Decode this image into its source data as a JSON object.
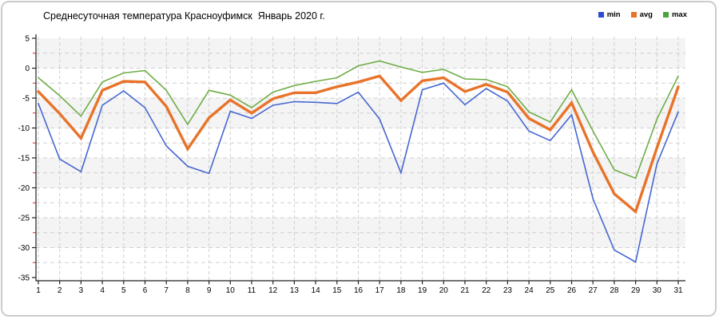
{
  "chart": {
    "title": "Среднесуточная температура Красноуфимск  Январь 2020 г.",
    "legend": [
      {
        "label": "min",
        "color": "#2d4bd5"
      },
      {
        "label": "avg",
        "color": "#e8732a"
      },
      {
        "label": "max",
        "color": "#4ca33f"
      }
    ]
  },
  "chart_data": {
    "type": "line",
    "title": "Среднесуточная температура Красноуфимск  Январь 2020 г.",
    "xlabel": "",
    "ylabel": "",
    "x": [
      1,
      2,
      3,
      4,
      5,
      6,
      7,
      8,
      9,
      10,
      11,
      12,
      13,
      14,
      15,
      16,
      17,
      18,
      19,
      20,
      21,
      22,
      23,
      24,
      25,
      26,
      27,
      28,
      29,
      30,
      31
    ],
    "series": [
      {
        "name": "min",
        "color": "#4667d2",
        "width": 1.6,
        "values": [
          -5.9,
          -15.2,
          -17.3,
          -6.2,
          -3.8,
          -6.6,
          -13.0,
          -16.4,
          -17.6,
          -7.2,
          -8.4,
          -6.2,
          -5.6,
          -5.7,
          -5.9,
          -4.0,
          -8.5,
          -17.5,
          -3.6,
          -2.5,
          -6.1,
          -3.4,
          -5.5,
          -10.5,
          -12.1,
          -7.8,
          -21.8,
          -30.4,
          -32.4,
          -16.0,
          -7.3
        ]
      },
      {
        "name": "avg",
        "color": "#e8732a",
        "width": 3.4,
        "values": [
          -3.9,
          -7.6,
          -11.7,
          -3.7,
          -2.2,
          -2.3,
          -6.4,
          -13.5,
          -8.3,
          -5.3,
          -7.5,
          -5.1,
          -4.1,
          -4.1,
          -3.1,
          -2.3,
          -1.3,
          -5.4,
          -2.1,
          -1.6,
          -3.9,
          -2.7,
          -4.0,
          -8.4,
          -10.3,
          -5.8,
          -14.0,
          -21.0,
          -24.0,
          -13.3,
          -3.1
        ]
      },
      {
        "name": "max",
        "color": "#70ad47",
        "width": 1.6,
        "values": [
          -1.6,
          -4.6,
          -8.0,
          -2.3,
          -0.8,
          -0.4,
          -3.7,
          -9.4,
          -3.7,
          -4.5,
          -6.6,
          -4.0,
          -2.9,
          -2.2,
          -1.6,
          0.4,
          1.2,
          0.2,
          -0.7,
          -0.2,
          -1.8,
          -1.9,
          -3.1,
          -7.3,
          -9.0,
          -3.6,
          -10.5,
          -17.0,
          -18.4,
          -8.5,
          -1.3
        ]
      }
    ],
    "ylim": [
      -35,
      5
    ],
    "y_tick_step": 5,
    "y_minor_tick_step": 2.5,
    "y_ticks": [
      5,
      0,
      -5,
      -10,
      -15,
      -20,
      -25,
      -30,
      -35
    ],
    "grid": true,
    "band_color": "#f4f4f4",
    "grid_color": "#cfcfcf",
    "axis_color": "#222222",
    "minor_tick_color": "#cc2222",
    "legend_position": "top-right"
  }
}
